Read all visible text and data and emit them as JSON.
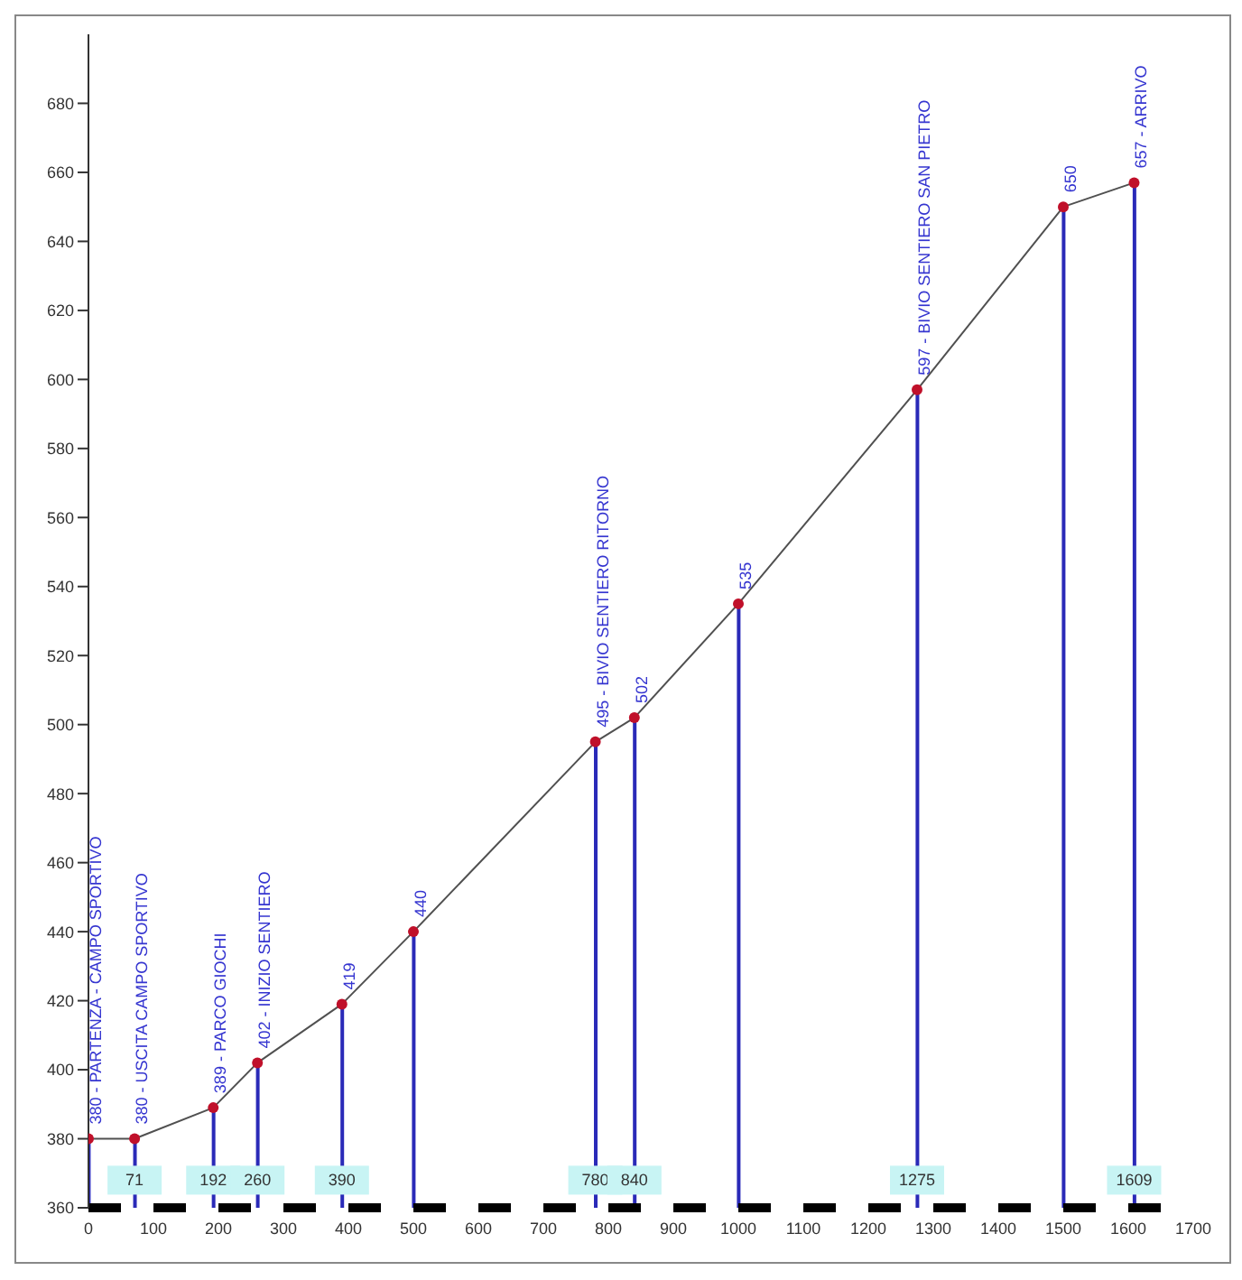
{
  "chart_data": {
    "type": "line",
    "x": [
      0,
      71,
      192,
      260,
      390,
      500,
      780,
      840,
      1000,
      1275,
      1500,
      1609
    ],
    "series": [
      {
        "type": "bar",
        "color": "#2a2ab8",
        "values": [
          380,
          380,
          389,
          402,
          419,
          440,
          495,
          502,
          535,
          597,
          650,
          657
        ]
      },
      {
        "color": "#505050",
        "marker": "none",
        "values": [
          380,
          380,
          389,
          402,
          419,
          440,
          495,
          502,
          535,
          597,
          650,
          657
        ]
      },
      {
        "type": "scatter",
        "color": "#c0102a",
        "values": [
          380,
          380,
          389,
          402,
          419,
          440,
          495,
          502,
          535,
          597,
          650,
          657
        ],
        "value_labels": [
          "380 - PARTENZA - CAMPO SPORTIVO",
          "380 - USCITA CAMPO SPORTIVO",
          "389 - PARCO GIOCHI",
          "402 - INIZIO SENTIERO",
          "419",
          "440",
          "495 - BIVIO SENTIERO RITORNO",
          "502",
          "535",
          "597 - BIVIO SENTIERO SAN PIETRO",
          "650",
          "657 - ARRIVO"
        ]
      }
    ],
    "annotations": [
      {
        "text": "71",
        "x": 71,
        "y": 368
      },
      {
        "text": "192",
        "x": 192,
        "y": 368
      },
      {
        "text": "260",
        "x": 260,
        "y": 368
      },
      {
        "text": "390",
        "x": 390,
        "y": 368
      },
      {
        "text": "780",
        "x": 780,
        "y": 368
      },
      {
        "text": "840",
        "x": 840,
        "y": 368
      },
      {
        "text": "1275",
        "x": 1275,
        "y": 368
      },
      {
        "text": "1609",
        "x": 1609,
        "y": 368
      }
    ],
    "xlim": [
      0,
      1700
    ],
    "xticks": [
      0,
      100,
      200,
      300,
      400,
      500,
      600,
      700,
      800,
      900,
      1000,
      1100,
      1200,
      1300,
      1400,
      1500,
      1600,
      1700
    ],
    "ylim": [
      360,
      700
    ],
    "yticks": [
      360,
      380,
      400,
      420,
      440,
      460,
      480,
      500,
      520,
      540,
      560,
      580,
      600,
      620,
      640,
      660,
      680
    ],
    "grid": false,
    "legend": false,
    "marker": "circle",
    "line_style": "solid"
  }
}
